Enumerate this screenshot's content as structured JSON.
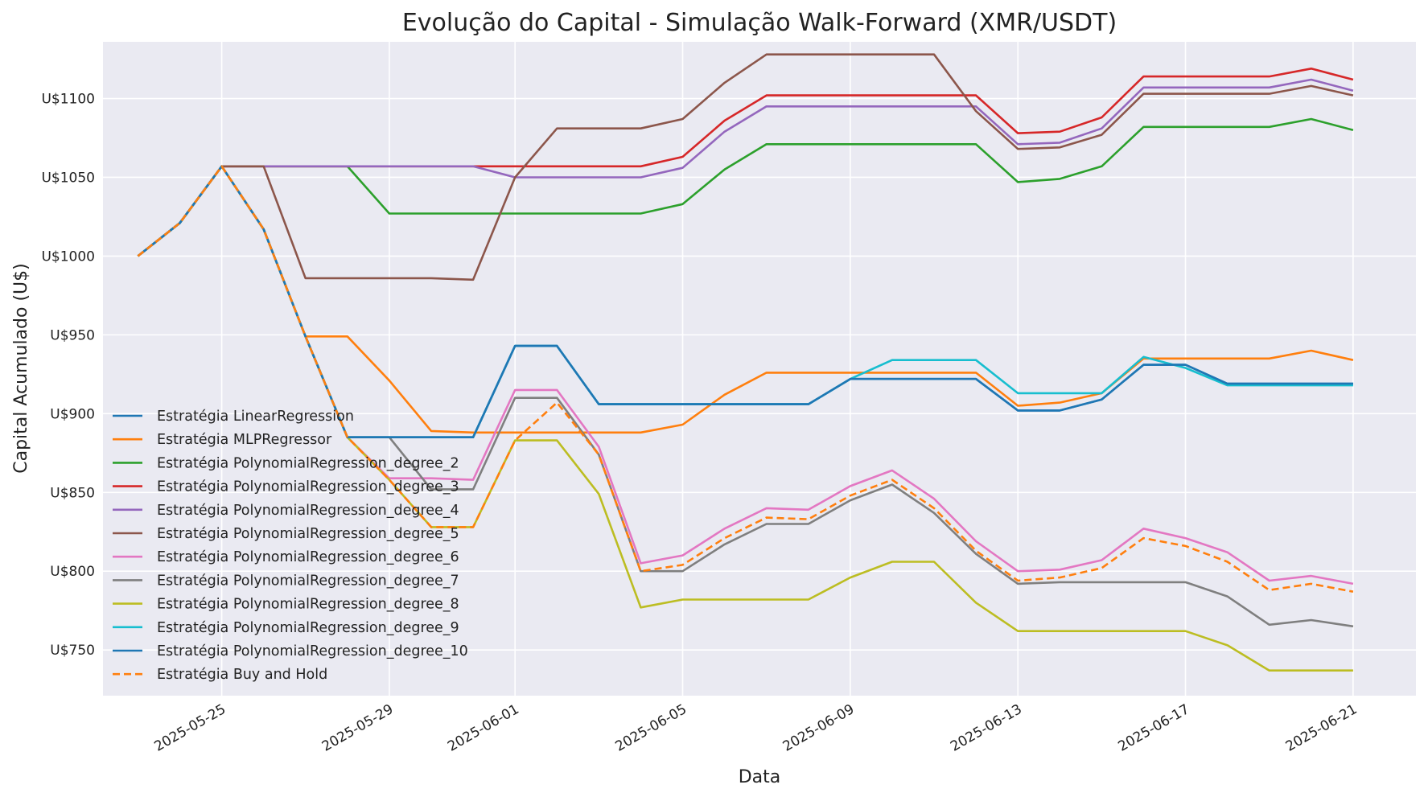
{
  "chart_data": {
    "type": "line",
    "title": "Evolução do Capital - Simulação Walk-Forward (XMR/USDT)",
    "xlabel": "Data",
    "ylabel": "Capital Acumulado (U$)",
    "grid": true,
    "legend_position": "lower-left",
    "x_start": "2025-05-23",
    "x": [
      "2025-05-23",
      "2025-05-24",
      "2025-05-25",
      "2025-05-26",
      "2025-05-27",
      "2025-05-28",
      "2025-05-29",
      "2025-05-30",
      "2025-05-31",
      "2025-06-01",
      "2025-06-02",
      "2025-06-03",
      "2025-06-04",
      "2025-06-05",
      "2025-06-06",
      "2025-06-07",
      "2025-06-08",
      "2025-06-09",
      "2025-06-10",
      "2025-06-11",
      "2025-06-12",
      "2025-06-13",
      "2025-06-14",
      "2025-06-15",
      "2025-06-16",
      "2025-06-17",
      "2025-06-18",
      "2025-06-19",
      "2025-06-20",
      "2025-06-21"
    ],
    "xlim": [
      "2025-05-22T04:00",
      "2025-06-22T12:00"
    ],
    "ylim": [
      721,
      1136
    ],
    "x_ticks": [
      "2025-05-25",
      "2025-05-29",
      "2025-06-01",
      "2025-06-05",
      "2025-06-09",
      "2025-06-13",
      "2025-06-17",
      "2025-06-21"
    ],
    "y_ticks": [
      750,
      800,
      850,
      900,
      950,
      1000,
      1050,
      1100
    ],
    "y_tick_labels": [
      "U$750",
      "U$800",
      "U$850",
      "U$900",
      "U$950",
      "U$1000",
      "U$1050",
      "U$1100"
    ],
    "series": [
      {
        "name": "Estratégia LinearRegression",
        "color": "#1f77b4",
        "dash": "solid",
        "values": [
          1000,
          1021,
          1057,
          1017,
          949,
          885,
          885,
          885,
          885,
          943,
          943,
          906,
          906,
          906,
          906,
          906,
          906,
          922,
          922,
          922,
          922,
          902,
          902,
          909,
          931,
          931,
          919,
          919,
          919,
          919
        ]
      },
      {
        "name": "Estratégia MLPRegressor",
        "color": "#ff7f0e",
        "dash": "solid",
        "values": [
          1000,
          1021,
          1057,
          1017,
          949,
          949,
          921,
          889,
          888,
          888,
          888,
          888,
          888,
          893,
          912,
          926,
          926,
          926,
          926,
          926,
          926,
          905,
          907,
          913,
          935,
          935,
          935,
          935,
          940,
          934
        ]
      },
      {
        "name": "Estratégia PolynomialRegression_degree_2",
        "color": "#2ca02c",
        "dash": "solid",
        "values": [
          1000,
          1021,
          1057,
          1057,
          1057,
          1057,
          1027,
          1027,
          1027,
          1027,
          1027,
          1027,
          1027,
          1033,
          1055,
          1071,
          1071,
          1071,
          1071,
          1071,
          1071,
          1047,
          1049,
          1057,
          1082,
          1082,
          1082,
          1082,
          1087,
          1080
        ]
      },
      {
        "name": "Estratégia PolynomialRegression_degree_3",
        "color": "#d62728",
        "dash": "solid",
        "values": [
          1000,
          1021,
          1057,
          1057,
          1057,
          1057,
          1057,
          1057,
          1057,
          1057,
          1057,
          1057,
          1057,
          1063,
          1086,
          1102,
          1102,
          1102,
          1102,
          1102,
          1102,
          1078,
          1079,
          1088,
          1114,
          1114,
          1114,
          1114,
          1119,
          1112
        ]
      },
      {
        "name": "Estratégia PolynomialRegression_degree_4",
        "color": "#9467bd",
        "dash": "solid",
        "values": [
          1000,
          1021,
          1057,
          1057,
          1057,
          1057,
          1057,
          1057,
          1057,
          1050,
          1050,
          1050,
          1050,
          1056,
          1079,
          1095,
          1095,
          1095,
          1095,
          1095,
          1095,
          1071,
          1072,
          1081,
          1107,
          1107,
          1107,
          1107,
          1112,
          1105
        ]
      },
      {
        "name": "Estratégia PolynomialRegression_degree_5",
        "color": "#8c564b",
        "dash": "solid",
        "values": [
          1000,
          1021,
          1057,
          1057,
          986,
          986,
          986,
          986,
          985,
          1050,
          1081,
          1081,
          1081,
          1087,
          1110,
          1128,
          1128,
          1128,
          1128,
          1128,
          1092,
          1068,
          1069,
          1077,
          1103,
          1103,
          1103,
          1103,
          1108,
          1102
        ]
      },
      {
        "name": "Estratégia PolynomialRegression_degree_6",
        "color": "#e377c2",
        "dash": "solid",
        "values": [
          1000,
          1021,
          1057,
          1017,
          949,
          885,
          859,
          859,
          858,
          915,
          915,
          879,
          805,
          810,
          827,
          840,
          839,
          854,
          864,
          846,
          819,
          800,
          801,
          807,
          827,
          821,
          812,
          794,
          797,
          792
        ]
      },
      {
        "name": "Estratégia PolynomialRegression_degree_7",
        "color": "#7f7f7f",
        "dash": "solid",
        "values": [
          1000,
          1021,
          1057,
          1017,
          949,
          885,
          885,
          852,
          852,
          910,
          910,
          874,
          800,
          800,
          817,
          830,
          830,
          845,
          855,
          837,
          811,
          792,
          793,
          793,
          793,
          793,
          784,
          766,
          769,
          765
        ]
      },
      {
        "name": "Estratégia PolynomialRegression_degree_8",
        "color": "#bcbd22",
        "dash": "solid",
        "values": [
          1000,
          1021,
          1057,
          1017,
          949,
          885,
          858,
          828,
          828,
          883,
          883,
          849,
          777,
          782,
          782,
          782,
          782,
          796,
          806,
          806,
          780,
          762,
          762,
          762,
          762,
          762,
          753,
          737,
          737,
          737
        ]
      },
      {
        "name": "Estratégia PolynomialRegression_degree_9",
        "color": "#17becf",
        "dash": "solid",
        "values": [
          1000,
          1021,
          1057,
          1017,
          949,
          885,
          885,
          885,
          885,
          943,
          943,
          906,
          906,
          906,
          906,
          906,
          906,
          922,
          934,
          934,
          934,
          913,
          913,
          913,
          936,
          929,
          918,
          918,
          918,
          918
        ]
      },
      {
        "name": "Estratégia PolynomialRegression_degree_10",
        "color": "#1f77b4",
        "dash": "solid",
        "values": [
          1000,
          1021,
          1057,
          1017,
          949,
          885,
          885,
          885,
          885,
          943,
          943,
          906,
          906,
          906,
          906,
          906,
          906,
          922,
          922,
          922,
          922,
          902,
          902,
          909,
          931,
          931,
          919,
          919,
          919,
          919
        ]
      },
      {
        "name": "Estratégia Buy and Hold",
        "color": "#ff7f0e",
        "dash": "dashed",
        "values": [
          1000,
          1021,
          1057,
          1017,
          949,
          885,
          858,
          828,
          828,
          883,
          907,
          874,
          800,
          804,
          821,
          834,
          833,
          848,
          858,
          840,
          813,
          794,
          796,
          802,
          821,
          816,
          806,
          788,
          792,
          787
        ]
      }
    ]
  }
}
